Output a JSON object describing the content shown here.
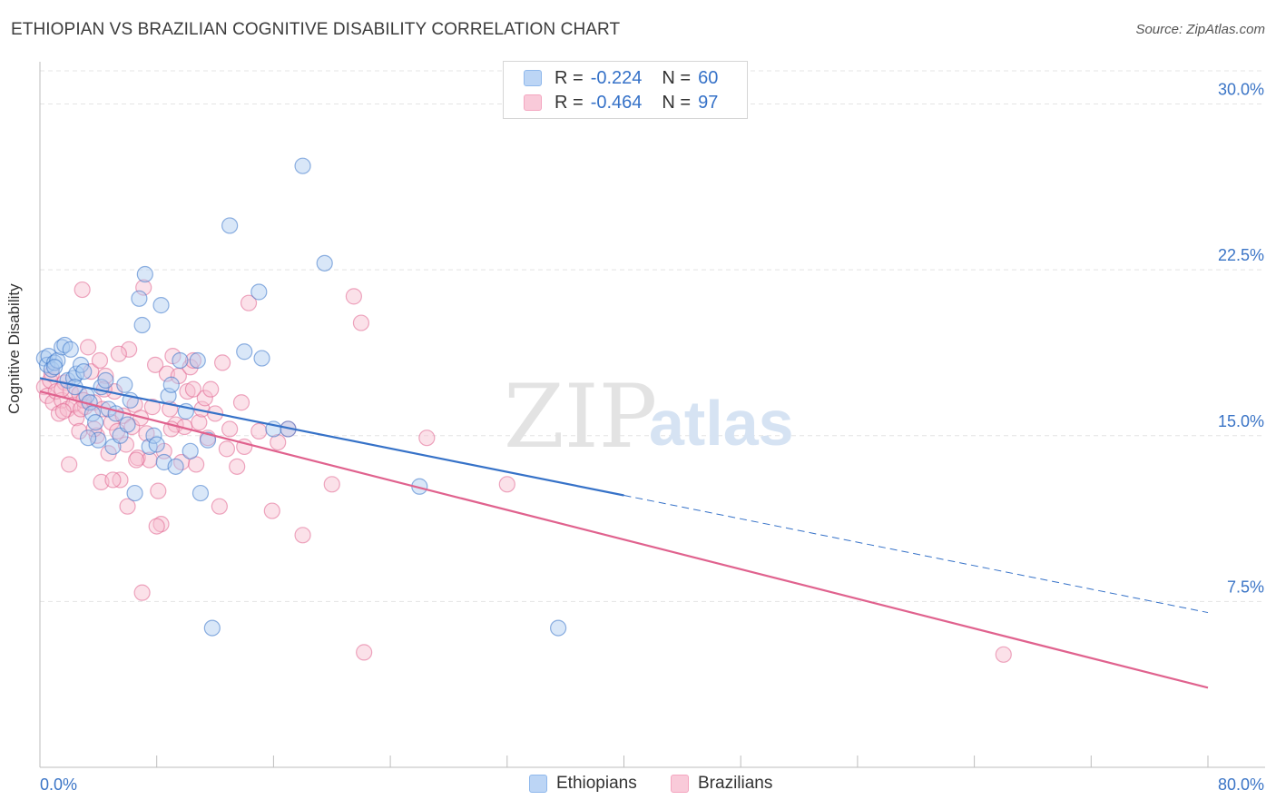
{
  "title": "ETHIOPIAN VS BRAZILIAN COGNITIVE DISABILITY CORRELATION CHART",
  "source": "Source: ZipAtlas.com",
  "watermark": {
    "zip": "ZIP",
    "atlas": "atlas"
  },
  "legend_top": {
    "r_label": "R =",
    "n_label": "N =",
    "rows": [
      {
        "r": "-0.224",
        "n": "60",
        "color": "#8fb8ec"
      },
      {
        "r": "-0.464",
        "n": "97",
        "color": "#f4a6c0"
      }
    ]
  },
  "legend_bottom": [
    {
      "label": "Ethiopians",
      "color": "#8fb8ec"
    },
    {
      "label": "Brazilians",
      "color": "#f4a6c0"
    }
  ],
  "chart_data": {
    "type": "scatter",
    "title": "ETHIOPIAN VS BRAZILIAN COGNITIVE DISABILITY CORRELATION CHART",
    "xlabel": "",
    "ylabel": "Cognitive Disability",
    "xlim": [
      0,
      80
    ],
    "ylim": [
      0,
      31.5
    ],
    "x_tick_labels": [
      "0.0%",
      "80.0%"
    ],
    "y_ticks": [
      7.5,
      15.0,
      22.5,
      30.0
    ],
    "y_tick_labels": [
      "7.5%",
      "15.0%",
      "22.5%",
      "30.0%"
    ],
    "grid": true,
    "series": [
      {
        "name": "Ethiopians",
        "color": "#3672c8",
        "fill": "#aac9f0",
        "trend": {
          "x0": 0,
          "y0": 17.6,
          "x1": 40,
          "y1": 12.3,
          "dashed_to_x": 80,
          "dashed_to_y": 7.0
        },
        "points": [
          [
            0.3,
            18.5
          ],
          [
            0.5,
            18.2
          ],
          [
            0.6,
            18.6
          ],
          [
            0.8,
            18.0
          ],
          [
            1.0,
            18.3
          ],
          [
            1.2,
            18.4
          ],
          [
            1.5,
            19.0
          ],
          [
            1.7,
            19.1
          ],
          [
            1.9,
            17.5
          ],
          [
            2.1,
            18.9
          ],
          [
            2.3,
            17.6
          ],
          [
            2.5,
            17.8
          ],
          [
            2.8,
            18.2
          ],
          [
            3.0,
            17.9
          ],
          [
            3.2,
            16.8
          ],
          [
            3.4,
            16.5
          ],
          [
            3.6,
            16.0
          ],
          [
            3.8,
            15.6
          ],
          [
            4.0,
            14.8
          ],
          [
            4.2,
            17.2
          ],
          [
            4.5,
            17.5
          ],
          [
            4.7,
            16.2
          ],
          [
            5.0,
            14.5
          ],
          [
            5.2,
            16.0
          ],
          [
            5.5,
            15.0
          ],
          [
            5.8,
            17.3
          ],
          [
            6.0,
            15.5
          ],
          [
            6.2,
            16.6
          ],
          [
            6.5,
            12.4
          ],
          [
            6.8,
            21.2
          ],
          [
            7.0,
            20.0
          ],
          [
            7.2,
            22.3
          ],
          [
            7.5,
            14.5
          ],
          [
            7.8,
            15.0
          ],
          [
            8.0,
            14.6
          ],
          [
            8.3,
            20.9
          ],
          [
            8.5,
            13.8
          ],
          [
            8.8,
            16.8
          ],
          [
            9.0,
            17.3
          ],
          [
            9.3,
            13.6
          ],
          [
            9.6,
            18.4
          ],
          [
            10.0,
            16.1
          ],
          [
            10.3,
            14.3
          ],
          [
            10.8,
            18.4
          ],
          [
            11.0,
            12.4
          ],
          [
            11.5,
            14.8
          ],
          [
            11.8,
            6.3
          ],
          [
            13.0,
            24.5
          ],
          [
            14.0,
            18.8
          ],
          [
            15.0,
            21.5
          ],
          [
            15.2,
            18.5
          ],
          [
            16.0,
            15.3
          ],
          [
            17.0,
            15.3
          ],
          [
            18.0,
            27.2
          ],
          [
            19.5,
            22.8
          ],
          [
            26.0,
            12.7
          ],
          [
            35.5,
            6.3
          ],
          [
            1.0,
            18.1
          ],
          [
            2.4,
            17.2
          ],
          [
            3.3,
            14.9
          ]
        ]
      },
      {
        "name": "Brazilians",
        "color": "#e0628e",
        "fill": "#f7bccf",
        "trend": {
          "x0": 0,
          "y0": 17.0,
          "x1": 80,
          "y1": 3.6
        },
        "points": [
          [
            0.3,
            17.2
          ],
          [
            0.5,
            16.8
          ],
          [
            0.7,
            17.5
          ],
          [
            0.9,
            16.5
          ],
          [
            1.1,
            17.0
          ],
          [
            1.3,
            16.0
          ],
          [
            1.5,
            16.6
          ],
          [
            1.7,
            17.4
          ],
          [
            1.9,
            16.2
          ],
          [
            2.1,
            17.0
          ],
          [
            2.3,
            16.4
          ],
          [
            2.5,
            15.8
          ],
          [
            2.7,
            16.9
          ],
          [
            2.9,
            21.6
          ],
          [
            3.1,
            16.3
          ],
          [
            3.3,
            19.0
          ],
          [
            3.5,
            17.9
          ],
          [
            3.7,
            16.5
          ],
          [
            3.9,
            15.0
          ],
          [
            4.1,
            18.4
          ],
          [
            4.3,
            16.2
          ],
          [
            4.5,
            17.7
          ],
          [
            4.7,
            14.2
          ],
          [
            4.9,
            15.6
          ],
          [
            5.1,
            17.0
          ],
          [
            5.3,
            15.2
          ],
          [
            5.5,
            13.0
          ],
          [
            5.7,
            15.9
          ],
          [
            5.9,
            14.6
          ],
          [
            6.1,
            18.9
          ],
          [
            6.3,
            15.4
          ],
          [
            6.5,
            16.4
          ],
          [
            6.7,
            14.0
          ],
          [
            6.9,
            15.8
          ],
          [
            7.1,
            21.7
          ],
          [
            7.3,
            15.1
          ],
          [
            7.5,
            13.9
          ],
          [
            7.7,
            16.3
          ],
          [
            7.9,
            18.2
          ],
          [
            8.1,
            12.5
          ],
          [
            8.3,
            11.0
          ],
          [
            8.5,
            14.3
          ],
          [
            8.7,
            17.8
          ],
          [
            8.9,
            16.2
          ],
          [
            9.1,
            18.6
          ],
          [
            9.3,
            15.5
          ],
          [
            9.5,
            17.7
          ],
          [
            9.7,
            13.8
          ],
          [
            9.9,
            15.4
          ],
          [
            10.1,
            17.0
          ],
          [
            10.3,
            18.1
          ],
          [
            10.5,
            18.4
          ],
          [
            10.7,
            13.7
          ],
          [
            10.9,
            15.6
          ],
          [
            11.1,
            16.2
          ],
          [
            11.3,
            16.7
          ],
          [
            11.7,
            17.1
          ],
          [
            12.0,
            16.0
          ],
          [
            12.3,
            11.8
          ],
          [
            12.5,
            18.3
          ],
          [
            13.0,
            15.3
          ],
          [
            13.5,
            13.6
          ],
          [
            13.8,
            16.5
          ],
          [
            14.0,
            14.5
          ],
          [
            14.3,
            21.0
          ],
          [
            15.0,
            15.2
          ],
          [
            15.9,
            11.6
          ],
          [
            16.3,
            14.7
          ],
          [
            17.0,
            15.3
          ],
          [
            18.0,
            10.5
          ],
          [
            20.0,
            12.8
          ],
          [
            21.5,
            21.3
          ],
          [
            22.0,
            20.1
          ],
          [
            22.2,
            5.2
          ],
          [
            26.5,
            14.9
          ],
          [
            32.0,
            12.8
          ],
          [
            66.0,
            5.1
          ],
          [
            1.5,
            17.1
          ],
          [
            2.7,
            15.2
          ],
          [
            3.7,
            15.3
          ],
          [
            4.2,
            12.9
          ],
          [
            6.0,
            11.8
          ],
          [
            7.0,
            7.9
          ],
          [
            8.0,
            10.9
          ],
          [
            10.5,
            17.1
          ],
          [
            12.8,
            14.4
          ],
          [
            2.0,
            13.7
          ],
          [
            3.0,
            16.6
          ],
          [
            4.4,
            17.1
          ],
          [
            5.4,
            18.7
          ],
          [
            6.6,
            13.9
          ],
          [
            9.0,
            15.3
          ],
          [
            11.5,
            14.9
          ],
          [
            0.8,
            17.8
          ],
          [
            1.6,
            16.1
          ],
          [
            2.8,
            16.2
          ],
          [
            5.0,
            13.0
          ]
        ]
      }
    ]
  }
}
